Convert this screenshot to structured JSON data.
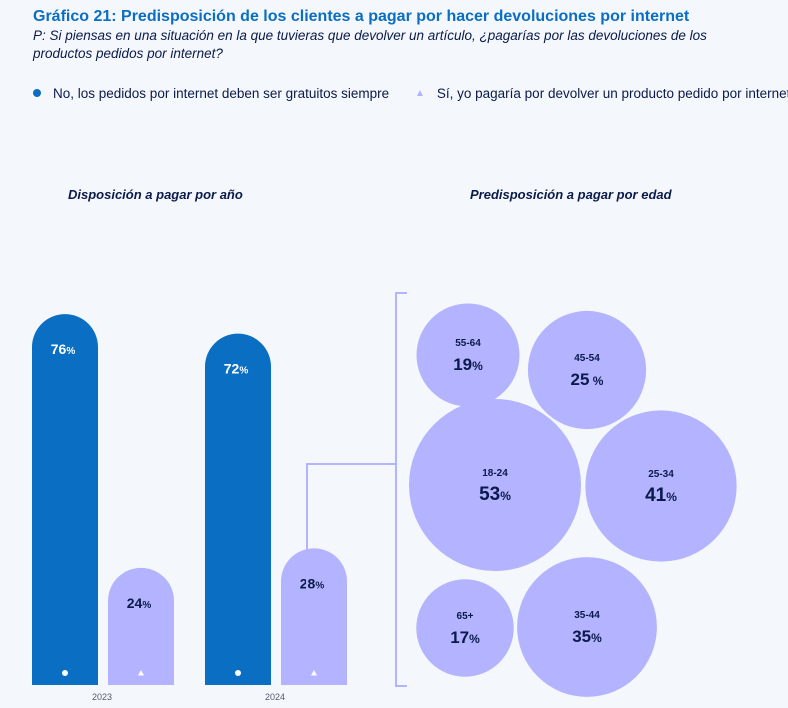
{
  "title": "Gráfico 21: Predisposición de los clientes a pagar por hacer devoluciones por internet",
  "question": "P: Si piensas en una situación en la que tuvieras que devolver un artículo, ¿pagarías por las devoluciones de los productos pedidos por internet?",
  "legend": {
    "no_label": "No, los pedidos por internet deben ser gratuitos siempre",
    "yes_label": "Sí, yo pagaría por devolver un producto pedido por internet"
  },
  "colors": {
    "no": "#0a6ec2",
    "yes": "#b3b3ff",
    "title": "#0a6ec2",
    "text": "#0b1a4a"
  },
  "chart_data": [
    {
      "type": "bar",
      "title": "Disposición a pagar por año",
      "categories": [
        "2023",
        "2024"
      ],
      "series": [
        {
          "name": "No, los pedidos por internet deben ser gratuitos siempre",
          "values": [
            76,
            72
          ],
          "labels": [
            "76%",
            "72%"
          ]
        },
        {
          "name": "Sí, yo pagaría por devolver un producto pedido por internet",
          "values": [
            24,
            28
          ],
          "labels": [
            "24%",
            "28%"
          ]
        }
      ],
      "ylim": [
        0,
        100
      ]
    },
    {
      "type": "bubble",
      "title": "Predisposición a pagar por edad",
      "categories": [
        "55-64",
        "45-54",
        "18-24",
        "25-34",
        "65+",
        "35-44"
      ],
      "values": [
        19,
        25,
        53,
        41,
        17,
        35
      ],
      "labels": [
        "19%",
        "25 %",
        "53%",
        "41%",
        "17%",
        "35%"
      ]
    }
  ]
}
